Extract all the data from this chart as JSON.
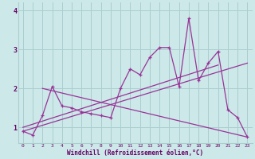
{
  "bg_color": "#cce8e8",
  "grid_color": "#aacece",
  "line_color": "#993399",
  "xlabel": "Windchill (Refroidissement éolien,°C)",
  "xlabel_color": "#660066",
  "tick_color": "#660066",
  "xlim": [
    -0.5,
    23.5
  ],
  "ylim": [
    0.6,
    4.2
  ],
  "yticks": [
    1,
    2,
    3,
    4
  ],
  "xticks": [
    0,
    1,
    2,
    3,
    4,
    5,
    6,
    7,
    8,
    9,
    10,
    11,
    12,
    13,
    14,
    15,
    16,
    17,
    18,
    19,
    20,
    21,
    22,
    23
  ],
  "series1_x": [
    0,
    1,
    2,
    3,
    4,
    5,
    6,
    7,
    8,
    9,
    10,
    11,
    12,
    13,
    14,
    15,
    16,
    17,
    18,
    19,
    20,
    21,
    22,
    23
  ],
  "series1_y": [
    0.9,
    0.8,
    1.3,
    2.05,
    1.55,
    1.5,
    1.4,
    1.35,
    1.3,
    1.25,
    2.0,
    2.5,
    2.35,
    2.8,
    3.05,
    3.05,
    2.05,
    3.8,
    2.2,
    2.65,
    2.95,
    1.45,
    1.25,
    0.75
  ],
  "trend1_x": [
    0,
    20
  ],
  "trend1_y": [
    1.0,
    2.6
  ],
  "trend2_x": [
    2,
    23
  ],
  "trend2_y": [
    2.0,
    0.75
  ],
  "trend3_x": [
    0,
    23
  ],
  "trend3_y": [
    0.9,
    2.65
  ]
}
